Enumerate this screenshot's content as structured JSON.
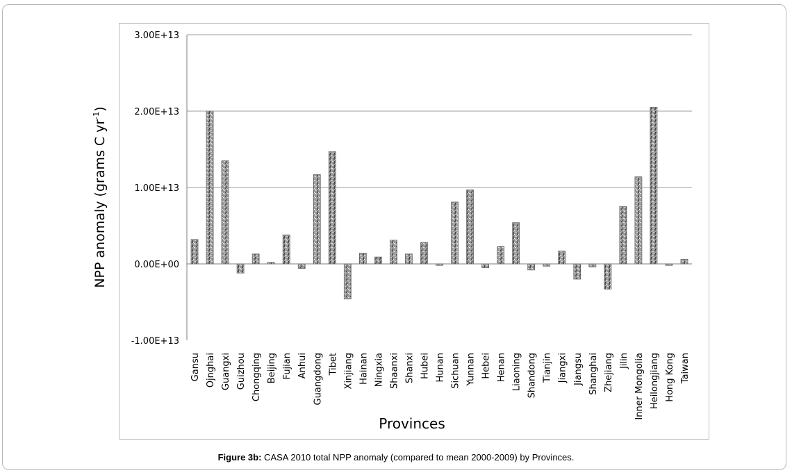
{
  "caption": {
    "bold": "Figure 3b:",
    "text": " CASA 2010 total NPP anomaly (compared to mean 2000-2009) by Provinces."
  },
  "chart_data": {
    "type": "bar",
    "xlabel": "Provinces",
    "ylabel": "NPP anomaly (grams C yr",
    "ylabel_sup": "-1",
    "ylabel_close": ")",
    "ylim": [
      -10000000000000.0,
      30000000000000.0
    ],
    "yticks": [
      30000000000000.0,
      20000000000000.0,
      10000000000000.0,
      0,
      -10000000000000.0
    ],
    "ytick_labels": [
      "3.00E+13",
      "2.00E+13",
      "1.00E+13",
      "0.00E+00",
      "-1.00E+13"
    ],
    "grid": true,
    "categories": [
      "Gansu",
      "Ojnghai",
      "Guangxi",
      "Guizhou",
      "Chongqing",
      "Beijing",
      "Fujian",
      "Anhui",
      "Guangdong",
      "Tibet",
      "Xinjiang",
      "Hainan",
      "Ningxia",
      "Shaanxi",
      "Shanxi",
      "Hubei",
      "Hunan",
      "Sichuan",
      "Yunnan",
      "Hebei",
      "Henan",
      "Liaoning",
      "Shandong",
      "Tianjin",
      "Jiangxi",
      "Jiangsu",
      "Shanghai",
      "Zhejiang",
      "Jilin",
      "Inner Mongolia",
      "Heilongjiang",
      "Hong Kong",
      "Taiwan"
    ],
    "values": [
      3200000000000.0,
      20000000000000.0,
      13500000000000.0,
      -1200000000000.0,
      1300000000000.0,
      200000000000.0,
      3800000000000.0,
      -600000000000.0,
      11700000000000.0,
      14700000000000.0,
      -4600000000000.0,
      1400000000000.0,
      900000000000.0,
      3100000000000.0,
      1300000000000.0,
      2800000000000.0,
      -200000000000.0,
      8100000000000.0,
      9700000000000.0,
      -500000000000.0,
      2300000000000.0,
      5400000000000.0,
      -800000000000.0,
      -300000000000.0,
      1700000000000.0,
      -2000000000000.0,
      -400000000000.0,
      -3300000000000.0,
      7500000000000.0,
      11400000000000.0,
      20500000000000.0,
      -200000000000.0,
      600000000000.0
    ],
    "bar_color": "#8f8f8f"
  }
}
